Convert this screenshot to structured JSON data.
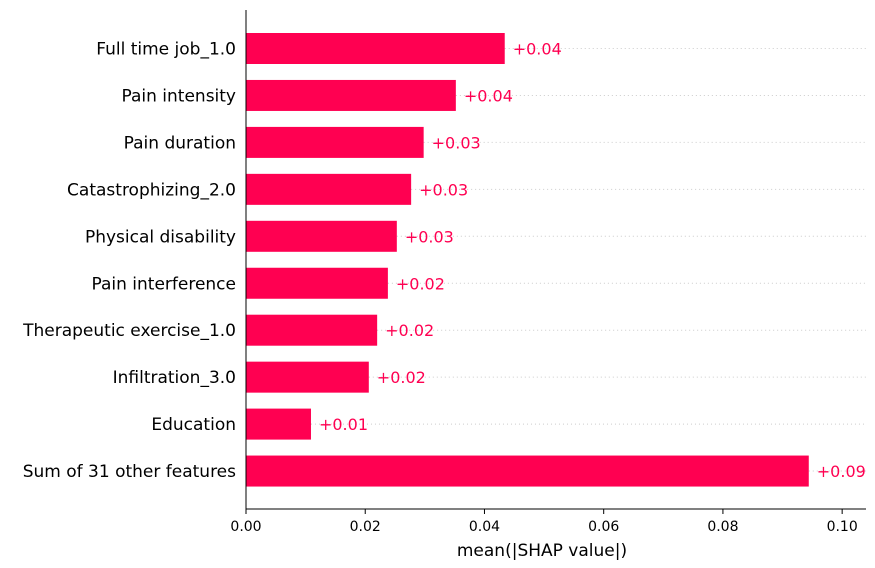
{
  "chart_data": {
    "type": "bar",
    "orientation": "horizontal",
    "categories": [
      "Full time job_1.0",
      "Pain intensity",
      "Pain duration",
      "Catastrophizing_2.0",
      "Physical disability",
      "Pain interference",
      "Therapeutic exercise_1.0",
      "Infiltration_3.0",
      "Education",
      "Sum of 31 other features"
    ],
    "values": [
      0.0434,
      0.0352,
      0.0298,
      0.0277,
      0.0253,
      0.0238,
      0.022,
      0.0206,
      0.0109,
      0.0944
    ],
    "value_labels": [
      "+0.04",
      "+0.04",
      "+0.03",
      "+0.03",
      "+0.03",
      "+0.02",
      "+0.02",
      "+0.02",
      "+0.01",
      "+0.09"
    ],
    "xlabel": "mean(|SHAP value|)",
    "ylabel": "",
    "title": "",
    "xlim": [
      0,
      0.104
    ],
    "xticks": [
      0.0,
      0.02,
      0.04,
      0.06,
      0.08,
      0.1
    ],
    "xtick_labels": [
      "0.00",
      "0.02",
      "0.04",
      "0.06",
      "0.08",
      "0.10"
    ],
    "grid": "horizontal dotted guide lines per bar",
    "bar_color": "#ff0051",
    "label_color": "#ff0051"
  }
}
